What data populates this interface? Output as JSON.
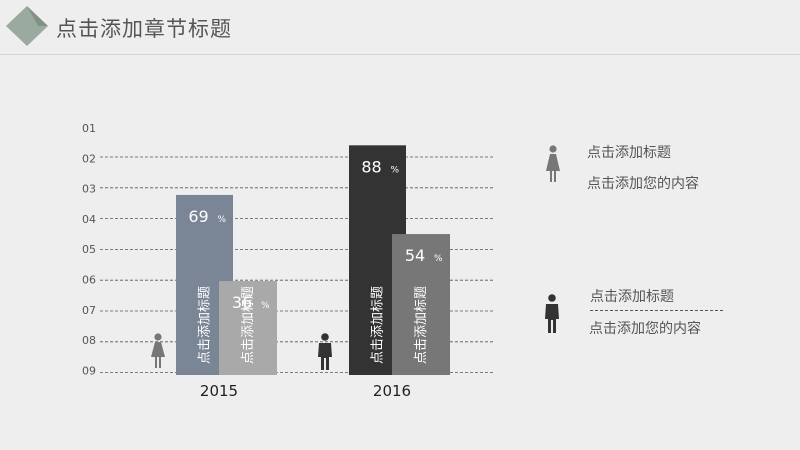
{
  "slide": {
    "title": "点击添加章节标题",
    "accent_color": "#9aaa9f",
    "accent_color_dark": "#6f8174"
  },
  "chart_data": {
    "type": "bar",
    "title": "",
    "y_tick_labels": [
      "01",
      "02",
      "03",
      "04",
      "05",
      "06",
      "07",
      "08",
      "09"
    ],
    "categories": [
      "2015",
      "2016"
    ],
    "ylim": [
      0,
      100
    ],
    "grid": true,
    "bars": [
      {
        "category": "2015",
        "value": 69,
        "label": "点击添加标题",
        "value_text": "69",
        "unit": "%",
        "color": "#7a8596"
      },
      {
        "category": "2015",
        "value": 36,
        "label": "点击添加标题",
        "value_text": "36",
        "unit": "%",
        "color": "#a9a9a9"
      },
      {
        "category": "2016",
        "value": 88,
        "label": "点击添加标题",
        "value_text": "88",
        "unit": "%",
        "color": "#333333"
      },
      {
        "category": "2016",
        "value": 54,
        "label": "点击添加标题",
        "value_text": "54",
        "unit": "%",
        "color": "#777777"
      }
    ]
  },
  "legend": [
    {
      "icon": "female-icon",
      "title": "点击添加标题",
      "subtitle": "点击添加您的内容",
      "color": "#777777"
    },
    {
      "icon": "male-icon",
      "title": "点击添加标题",
      "subtitle": "点击添加您的内容",
      "color": "#333333"
    }
  ]
}
